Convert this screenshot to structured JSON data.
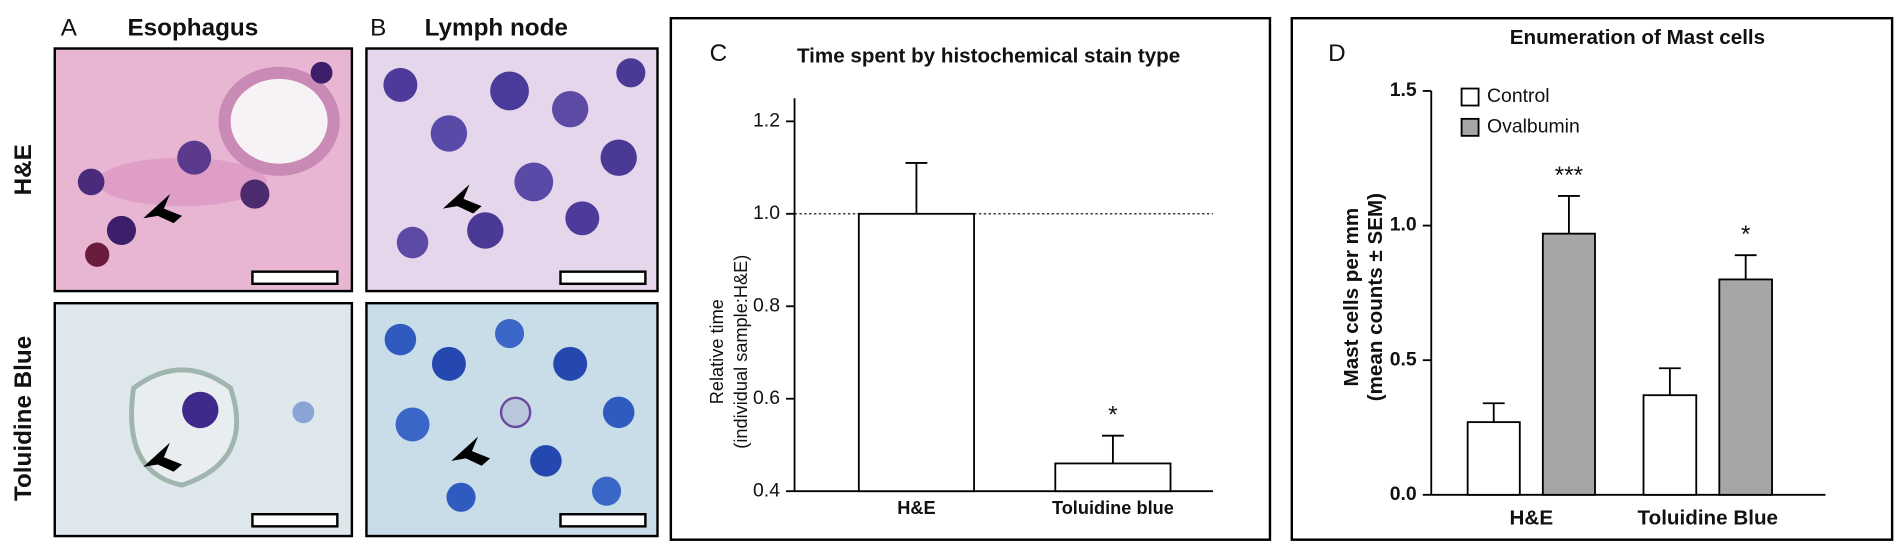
{
  "figure": {
    "panels": [
      {
        "letter": "A",
        "title": "Esophagus"
      },
      {
        "letter": "B",
        "title": "Lymph node"
      }
    ],
    "row_labels": [
      "H&E",
      "Toluidine Blue"
    ]
  },
  "chart_data": [
    {
      "type": "bar",
      "panel": "C",
      "title": "Time spent by histochemical stain type",
      "y_label": [
        "Relative time",
        "(individual sample:H&E)"
      ],
      "categories": [
        "H&E",
        "Toluidine blue"
      ],
      "series": [
        {
          "color": "#ffffff",
          "values": [
            1.0,
            0.46
          ],
          "errors": [
            0.11,
            0.06
          ],
          "annotations": [
            null,
            "*"
          ]
        }
      ],
      "ylim": [
        0.4,
        1.25
      ],
      "yticks": [
        0.4,
        0.6,
        0.8,
        {
          "value": 1,
          "label": "1.0"
        },
        1.2
      ],
      "reference_line": 1
    },
    {
      "type": "bar",
      "panel": "D",
      "title": "Enumeration of Mast cells",
      "y_label": [
        "Mast cells per mm",
        "(mean counts ± SEM)"
      ],
      "categories": [
        "H&E",
        "Toluidine Blue"
      ],
      "series": [
        {
          "name": "Control",
          "color": "#ffffff",
          "values": [
            0.27,
            0.37
          ],
          "errors": [
            0.07,
            0.1
          ]
        },
        {
          "name": "Ovalbumin",
          "color": "#a6a6a6",
          "values": [
            0.97,
            0.8
          ],
          "errors": [
            0.14,
            0.09
          ],
          "annotations": [
            "***",
            "*"
          ]
        }
      ],
      "ylim": [
        0,
        1.5
      ],
      "yticks": [
        {
          "value": 0,
          "label": "0.0"
        },
        0.5,
        {
          "value": 1,
          "label": "1.0"
        },
        1.5
      ],
      "legend": "upper left"
    }
  ]
}
